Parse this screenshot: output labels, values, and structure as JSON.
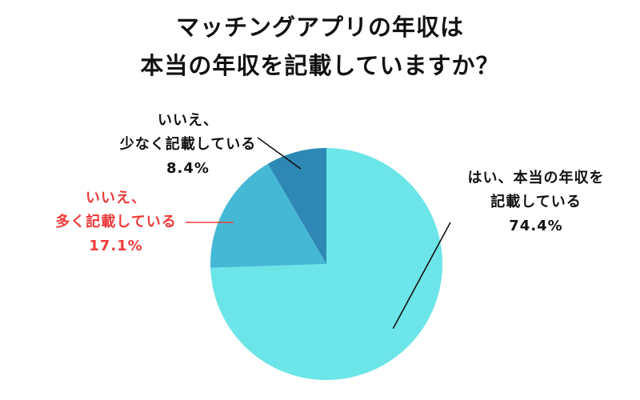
{
  "chart_data": {
    "type": "pie",
    "title": [
      "マッチングアプリの年収は",
      "本当の年収を記載していますか？"
    ],
    "slices": [
      {
        "name_lines": [
          "はい、本当の年収を",
          "記載している"
        ],
        "value": 74.4,
        "value_label": "74.4%",
        "color": "#6ce5e8",
        "label_color": "#111111"
      },
      {
        "name_lines": [
          "いいえ、",
          "多く記載している"
        ],
        "value": 17.1,
        "value_label": "17.1%",
        "color": "#45b8d6",
        "label_color": "#f03a3a"
      },
      {
        "name_lines": [
          "いいえ、",
          "少なく記載している"
        ],
        "value": 8.4,
        "value_label": "8.4%",
        "color": "#2e88b5",
        "label_color": "#111111"
      }
    ],
    "start": "12 o'clock",
    "direction": "clockwise",
    "legend": "none"
  }
}
